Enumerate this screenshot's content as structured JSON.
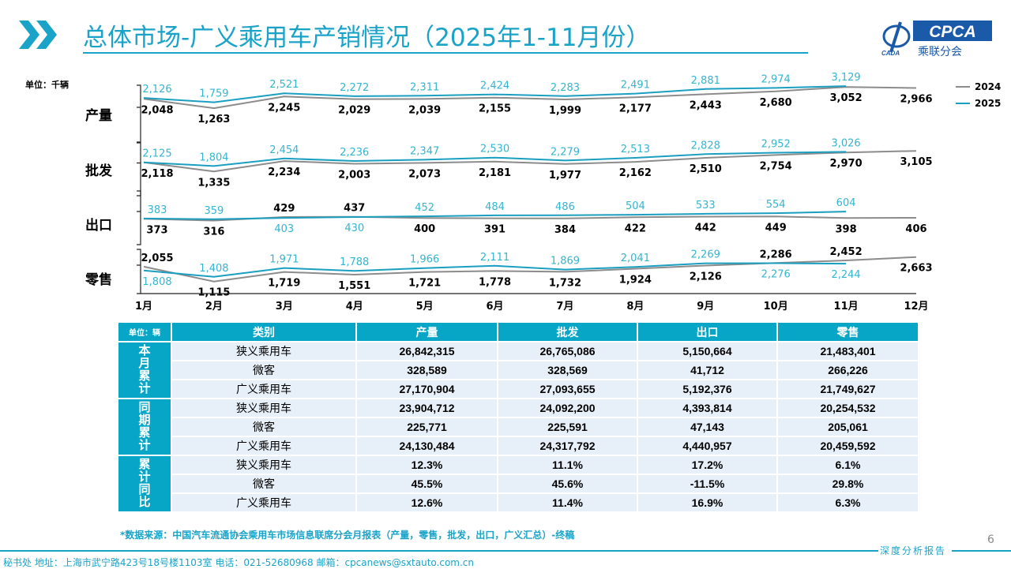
{
  "header": {
    "title": "总体市场-广义乘用车产销情况（2025年1-11月份）",
    "logo_text": "CPCA",
    "logo_subtext": "乘联分会",
    "logo_small": "CADA"
  },
  "colors": {
    "accent": "#1aa3c8",
    "series_2024": "#8c8c8c",
    "series_2025": "#1a9fc0",
    "label_2025": "#33b5d0",
    "table_header": "#07a6c6",
    "table_row": "#e7eff8"
  },
  "chart_data": {
    "type": "line",
    "unit_label": "单位：千辆",
    "categories": [
      "1月",
      "2月",
      "3月",
      "4月",
      "5月",
      "6月",
      "7月",
      "8月",
      "9月",
      "10月",
      "11月",
      "12月"
    ],
    "legend": [
      "2024",
      "2025"
    ],
    "legend_position": "top-right",
    "panels": [
      {
        "label": "产量",
        "ylim": [
          -1600,
          3200
        ],
        "series": [
          {
            "name": "2024",
            "values": [
              2048,
              1263,
              2245,
              2029,
              2039,
              2155,
              1999,
              2177,
              2443,
              2680,
              3052,
              2966
            ]
          },
          {
            "name": "2025",
            "values": [
              2126,
              1759,
              2521,
              2272,
              2311,
              2424,
              2283,
              2491,
              2881,
              2974,
              3129
            ]
          }
        ]
      },
      {
        "label": "批发",
        "ylim": [
          -750,
          3800
        ],
        "series": [
          {
            "name": "2024",
            "values": [
              2118,
              1335,
              2234,
              2003,
              2073,
              2181,
              1977,
              2162,
              2510,
              2754,
              2970,
              3105
            ]
          },
          {
            "name": "2025",
            "values": [
              2125,
              1804,
              2454,
              2236,
              2347,
              2530,
              2279,
              2513,
              2828,
              2952,
              3026
            ]
          }
        ]
      },
      {
        "label": "出口",
        "ylim": [
          -450,
          1260
        ],
        "series": [
          {
            "name": "2024",
            "values": [
              373,
              316,
              429,
              437,
              400,
              391,
              384,
              422,
              442,
              449,
              398,
              406
            ]
          },
          {
            "name": "2025",
            "values": [
              383,
              359,
              403,
              430,
              452,
              484,
              486,
              504,
              533,
              554,
              604
            ]
          }
        ]
      },
      {
        "label": "零售",
        "ylim": [
          350,
          3150
        ],
        "series": [
          {
            "name": "2024",
            "values": [
              2055,
              1115,
              1719,
              1551,
              1721,
              1778,
              1732,
              1924,
              2126,
              2286,
              2452,
              2663
            ]
          },
          {
            "name": "2025",
            "values": [
              1808,
              1408,
              1971,
              1788,
              1966,
              2111,
              1869,
              2041,
              2269,
              2276,
              2244
            ]
          }
        ]
      }
    ]
  },
  "table": {
    "unit": "单位：辆",
    "headers": [
      "类别",
      "产量",
      "批发",
      "出口",
      "零售"
    ],
    "groups": [
      {
        "label": "本月累计",
        "rows": [
          {
            "category": "狭义乘用车",
            "values": [
              "26,842,315",
              "26,765,086",
              "5,150,664",
              "21,483,401"
            ]
          },
          {
            "category": "微客",
            "values": [
              "328,589",
              "328,569",
              "41,712",
              "266,226"
            ]
          },
          {
            "category": "广义乘用车",
            "values": [
              "27,170,904",
              "27,093,655",
              "5,192,376",
              "21,749,627"
            ]
          }
        ]
      },
      {
        "label": "同期累计",
        "rows": [
          {
            "category": "狭义乘用车",
            "values": [
              "23,904,712",
              "24,092,200",
              "4,393,814",
              "20,254,532"
            ]
          },
          {
            "category": "微客",
            "values": [
              "225,771",
              "225,591",
              "47,143",
              "205,061"
            ]
          },
          {
            "category": "广义乘用车",
            "values": [
              "24,130,484",
              "24,317,792",
              "4,440,957",
              "20,459,592"
            ]
          }
        ]
      },
      {
        "label": "累计同比",
        "rows": [
          {
            "category": "狭义乘用车",
            "values": [
              "12.3%",
              "11.1%",
              "17.2%",
              "6.1%"
            ]
          },
          {
            "category": "微客",
            "values": [
              "45.5%",
              "45.6%",
              "-11.5%",
              "29.8%"
            ]
          },
          {
            "category": "广义乘用车",
            "values": [
              "12.6%",
              "11.4%",
              "16.9%",
              "6.3%"
            ]
          }
        ]
      }
    ]
  },
  "footer": {
    "source": "*数据来源：中国汽车流通协会乘用车市场信息联席分会月报表（产量，零售，批发，出口，广义汇总）-终稿",
    "report_label": "深度分析报告",
    "page_number": "6",
    "contact": "秘书处   地址：上海市武宁路423号18号楼1103室  电话：021-52680968   邮箱：cpcanews@sxtauto.com.cn"
  }
}
